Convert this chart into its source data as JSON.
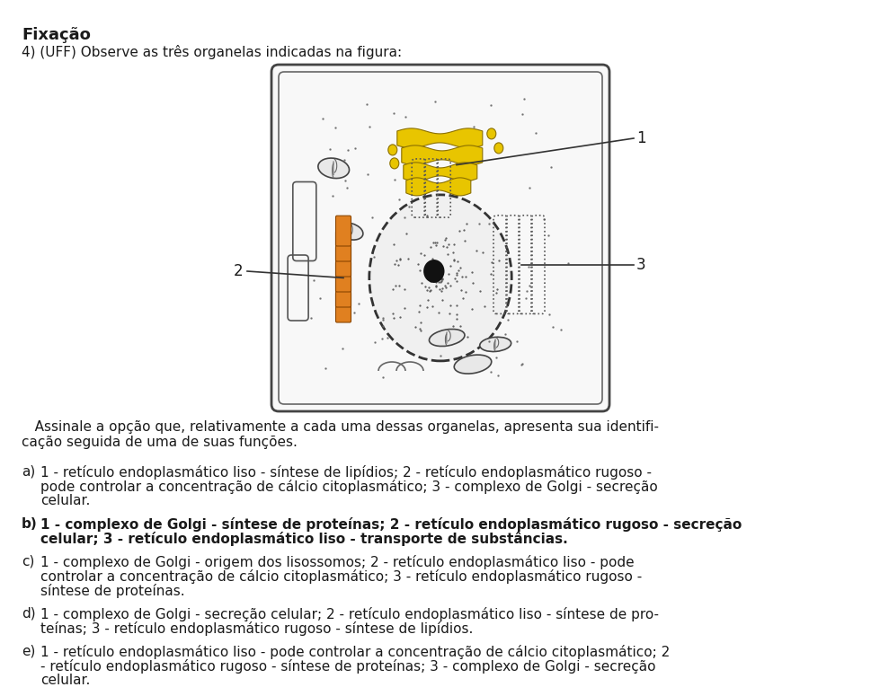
{
  "title": "Fixação",
  "question": "4) (UFF) Observe as três organelas indicadas na figura:",
  "instruction_line1": "   Assinale a opção que, relativamente a cada uma dessas organelas, apresenta sua identifi-",
  "instruction_line2": "cação seguida de uma de suas funções.",
  "option_a_label": "a) ",
  "option_a": "1 - retículo endoplasmático liso - síntese de lipídios; 2 - retículo endoplasmático rugoso - pode controlar a concentração de cálcio citoplasmático; 3 - complexo de Golgi - secreção celular.",
  "option_b_label": "b) ",
  "option_b": "1 - complexo de Golgi - síntese de proteínas; 2 - retículo endoplasmático rugoso - secreção celular; 3 - retículo endoplasmático liso - transporte de substâncias.",
  "option_c_label": "c) ",
  "option_c": "1 - complexo de Golgi - origem dos lisossomos; 2 - retículo endoplasmático liso - pode controlar a concentração de cálcio citoplasmático; 3 - retículo endoplasmático rugoso - síntese de proteínas.",
  "option_d_label": "d) ",
  "option_d": "1 - complexo de Golgi - secreção celular; 2 - retículo endoplasmático liso - síntese de pro-teínas; 3 - retículo endoplasmático rugoso - síntese de lipídios.",
  "option_e_label": "e) ",
  "option_e": "1 - retículo endoplasmático liso - pode controlar a concentração de cálcio citoplasmático; 2 - retículo endoplasmático rugoso - síntese de proteínas; 3 - complexo de Golgi - secreção celular.",
  "bold_option": "b",
  "bg_color": "#ffffff",
  "text_color": "#1a1a1a",
  "font_size_title": 13,
  "font_size_body": 11.0
}
